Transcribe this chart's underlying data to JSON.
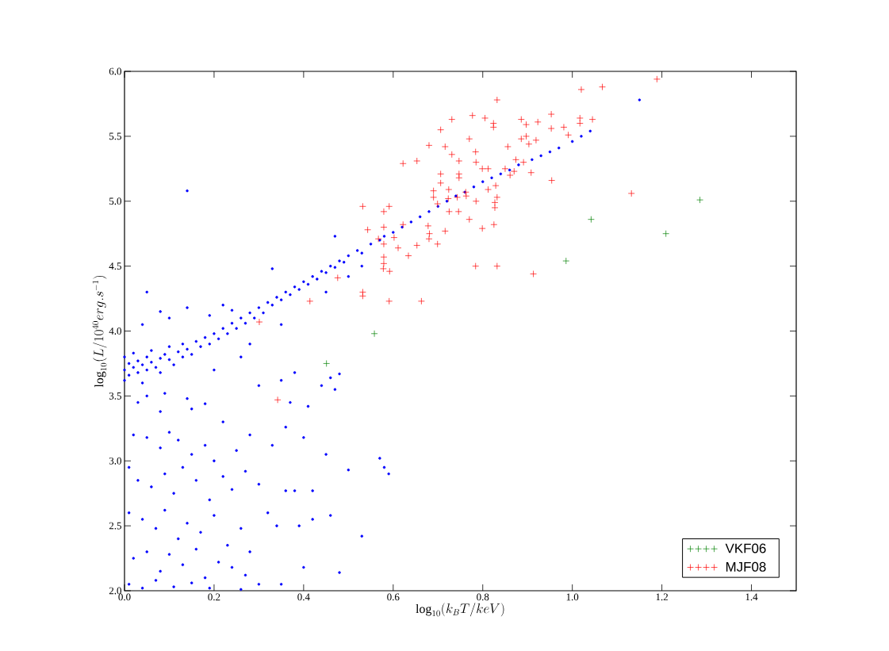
{
  "chart_data": {
    "type": "scatter",
    "xlabel": "\\log_{10}(k_BT/keV)",
    "ylabel": "\\log_{10}(L/10^{40}erg.s^{-1})",
    "xlim": [
      0,
      1.5
    ],
    "ylim": [
      2,
      6
    ],
    "xticks": [
      {
        "value": 0,
        "label": "0.0"
      },
      {
        "value": 0.2,
        "label": "0.2"
      },
      {
        "value": 0.4,
        "label": "0.4"
      },
      {
        "value": 0.6,
        "label": "0.6"
      },
      {
        "value": 0.8,
        "label": "0.8"
      },
      {
        "value": 1.0,
        "label": "1.0"
      },
      {
        "value": 1.2,
        "label": "1.2"
      },
      {
        "value": 1.4,
        "label": "1.4"
      }
    ],
    "yticks": [
      {
        "value": 2,
        "label": "2.0"
      },
      {
        "value": 2.5,
        "label": "2.5"
      },
      {
        "value": 3,
        "label": "3.0"
      },
      {
        "value": 3.5,
        "label": "3.5"
      },
      {
        "value": 4,
        "label": "4.0"
      },
      {
        "value": 4.5,
        "label": "4.5"
      },
      {
        "value": 5,
        "label": "5.0"
      },
      {
        "value": 5.5,
        "label": "5.5"
      },
      {
        "value": 6,
        "label": "6.0"
      }
    ],
    "grid": false,
    "legend": "bottom right",
    "series": [
      {
        "color": "#0000ff",
        "marker": "circle",
        "x": [
          0.0,
          0.0,
          0.0,
          0.01,
          0.01,
          0.02,
          0.02,
          0.03,
          0.03,
          0.04,
          0.04,
          0.05,
          0.05,
          0.06,
          0.06,
          0.07,
          0.08,
          0.08,
          0.09,
          0.1,
          0.1,
          0.11,
          0.12,
          0.13,
          0.13,
          0.14,
          0.15,
          0.16,
          0.17,
          0.18,
          0.19,
          0.2,
          0.21,
          0.22,
          0.23,
          0.24,
          0.25,
          0.26,
          0.27,
          0.28,
          0.29,
          0.3,
          0.31,
          0.32,
          0.33,
          0.34,
          0.35,
          0.36,
          0.37,
          0.38,
          0.39,
          0.4,
          0.41,
          0.42,
          0.43,
          0.44,
          0.45,
          0.46,
          0.47,
          0.48,
          0.49,
          0.5,
          0.52,
          0.53,
          0.55,
          0.57,
          0.58,
          0.6,
          0.62,
          0.64,
          0.66,
          0.68,
          0.7,
          0.72,
          0.74,
          0.76,
          0.78,
          0.8,
          0.82,
          0.84,
          0.86,
          0.88,
          0.91,
          0.93,
          0.95,
          0.97,
          1.0,
          1.02,
          1.04,
          1.15,
          0.14,
          0.05,
          0.08,
          0.14,
          0.24,
          0.33,
          0.47,
          0.04,
          0.1,
          0.19,
          0.22,
          0.03,
          0.05,
          0.08,
          0.09,
          0.15,
          0.14,
          0.18,
          0.22,
          0.3,
          0.35,
          0.38,
          0.37,
          0.44,
          0.46,
          0.48,
          0.47,
          0.41,
          0.5,
          0.53,
          0.45,
          0.35,
          0.28,
          0.2,
          0.26,
          0.02,
          0.05,
          0.08,
          0.1,
          0.12,
          0.15,
          0.18,
          0.2,
          0.25,
          0.28,
          0.33,
          0.36,
          0.4,
          0.45,
          0.57,
          0.58,
          0.59,
          0.01,
          0.03,
          0.06,
          0.09,
          0.11,
          0.13,
          0.16,
          0.19,
          0.22,
          0.24,
          0.27,
          0.3,
          0.32,
          0.36,
          0.38,
          0.42,
          0.46,
          0.5,
          0.53,
          0.01,
          0.04,
          0.07,
          0.09,
          0.12,
          0.14,
          0.17,
          0.2,
          0.23,
          0.26,
          0.28,
          0.34,
          0.39,
          0.42,
          0.02,
          0.05,
          0.08,
          0.1,
          0.13,
          0.16,
          0.18,
          0.21,
          0.24,
          0.27,
          0.3,
          0.35,
          0.4,
          0.48,
          0.01,
          0.04,
          0.07,
          0.11,
          0.15,
          0.19,
          0.26
        ],
        "values": [
          3.7,
          3.62,
          3.8,
          3.75,
          3.66,
          3.72,
          3.83,
          3.68,
          3.77,
          3.74,
          3.6,
          3.8,
          3.7,
          3.76,
          3.85,
          3.72,
          3.79,
          3.68,
          3.82,
          3.78,
          3.88,
          3.74,
          3.84,
          3.8,
          3.9,
          3.86,
          3.82,
          3.92,
          3.88,
          3.95,
          3.9,
          3.98,
          3.94,
          4.02,
          3.98,
          4.06,
          4.02,
          4.1,
          4.06,
          4.14,
          4.1,
          4.18,
          4.14,
          4.22,
          4.2,
          4.26,
          4.24,
          4.3,
          4.28,
          4.34,
          4.32,
          4.38,
          4.36,
          4.42,
          4.4,
          4.46,
          4.45,
          4.5,
          4.49,
          4.54,
          4.53,
          4.58,
          4.62,
          4.6,
          4.67,
          4.7,
          4.73,
          4.76,
          4.8,
          4.84,
          4.88,
          4.92,
          4.96,
          5.0,
          5.04,
          5.07,
          5.11,
          5.15,
          5.18,
          5.21,
          5.24,
          5.28,
          5.32,
          5.35,
          5.38,
          5.41,
          5.46,
          5.5,
          5.54,
          5.78,
          5.08,
          4.3,
          4.15,
          4.18,
          4.16,
          4.48,
          4.73,
          4.05,
          4.1,
          4.12,
          4.2,
          3.45,
          3.5,
          3.38,
          3.52,
          3.4,
          3.48,
          3.44,
          3.3,
          3.58,
          3.62,
          3.68,
          3.45,
          3.58,
          3.64,
          3.67,
          3.55,
          3.42,
          4.42,
          4.5,
          4.3,
          4.05,
          3.9,
          3.7,
          3.8,
          3.2,
          3.18,
          3.1,
          3.22,
          3.16,
          3.05,
          3.12,
          3.0,
          3.08,
          3.2,
          3.12,
          3.26,
          3.18,
          3.05,
          3.02,
          2.95,
          2.9,
          2.95,
          2.85,
          2.8,
          2.9,
          2.75,
          2.95,
          2.85,
          2.7,
          2.88,
          2.78,
          2.92,
          2.82,
          2.6,
          2.77,
          2.77,
          2.77,
          2.58,
          2.93,
          2.42,
          2.6,
          2.55,
          2.48,
          2.62,
          2.4,
          2.52,
          2.45,
          2.58,
          2.35,
          2.48,
          2.3,
          2.5,
          2.5,
          2.55,
          2.25,
          2.3,
          2.15,
          2.28,
          2.2,
          2.32,
          2.1,
          2.22,
          2.18,
          2.12,
          2.05,
          2.05,
          2.18,
          2.14,
          2.05,
          2.02,
          2.08,
          2.03,
          2.06,
          2.02,
          2.01
        ]
      },
      {
        "name": "VKF06",
        "color": "#008000",
        "marker": "cross",
        "x": [
          0.451,
          0.558,
          0.986,
          1.042,
          1.285,
          1.209
        ],
        "values": [
          3.75,
          3.98,
          4.54,
          4.86,
          5.01,
          4.75
        ]
      },
      {
        "name": "MJF08",
        "color": "#ff0000",
        "marker": "cross",
        "x": [
          1.02,
          1.067,
          0.832,
          0.731,
          0.777,
          0.805,
          0.824,
          0.824,
          0.706,
          0.886,
          0.897,
          0.923,
          0.953,
          0.953,
          0.981,
          0.991,
          1.017,
          1.017,
          1.045,
          0.77,
          0.68,
          0.716,
          0.784,
          0.731,
          0.747,
          0.785,
          0.622,
          0.653,
          0.856,
          0.886,
          0.897,
          0.903,
          0.919,
          0.874,
          0.891,
          0.799,
          0.812,
          0.85,
          0.87,
          0.861,
          0.908,
          0.706,
          0.747,
          0.747,
          0.706,
          0.724,
          0.69,
          0.69,
          0.762,
          0.763,
          0.723,
          0.743,
          0.829,
          0.832,
          0.812,
          0.827,
          0.827,
          0.785,
          0.699,
          0.954,
          1.132,
          0.532,
          0.591,
          0.579,
          0.543,
          0.579,
          0.622,
          0.716,
          0.77,
          0.799,
          0.825,
          0.678,
          0.681,
          0.68,
          0.602,
          0.567,
          0.579,
          0.611,
          0.653,
          0.699,
          0.634,
          0.579,
          0.579,
          0.578,
          0.592,
          0.532,
          0.532,
          0.591,
          0.663,
          0.784,
          0.832,
          0.913,
          0.725,
          0.746,
          1.189,
          0.342,
          0.301,
          0.414,
          0.476
        ],
        "values": [
          5.86,
          5.88,
          5.78,
          5.63,
          5.66,
          5.64,
          5.6,
          5.57,
          5.55,
          5.63,
          5.59,
          5.61,
          5.67,
          5.56,
          5.57,
          5.51,
          5.64,
          5.6,
          5.63,
          5.48,
          5.43,
          5.42,
          5.38,
          5.36,
          5.31,
          5.3,
          5.29,
          5.31,
          5.42,
          5.48,
          5.5,
          5.44,
          5.47,
          5.32,
          5.3,
          5.25,
          5.25,
          5.25,
          5.23,
          5.2,
          5.22,
          5.21,
          5.21,
          5.18,
          5.14,
          5.09,
          5.08,
          5.03,
          5.07,
          5.04,
          5.02,
          5.03,
          5.12,
          5.03,
          5.09,
          4.99,
          4.95,
          5.0,
          4.98,
          5.16,
          5.06,
          4.96,
          4.96,
          4.92,
          4.78,
          4.8,
          4.82,
          4.77,
          4.86,
          4.79,
          4.82,
          4.81,
          4.75,
          4.71,
          4.72,
          4.71,
          4.67,
          4.64,
          4.66,
          4.67,
          4.58,
          4.57,
          4.52,
          4.48,
          4.46,
          4.3,
          4.27,
          4.23,
          4.23,
          4.5,
          4.5,
          4.44,
          4.92,
          4.92,
          5.94,
          3.47,
          4.07,
          4.23,
          4.41
        ]
      }
    ]
  }
}
